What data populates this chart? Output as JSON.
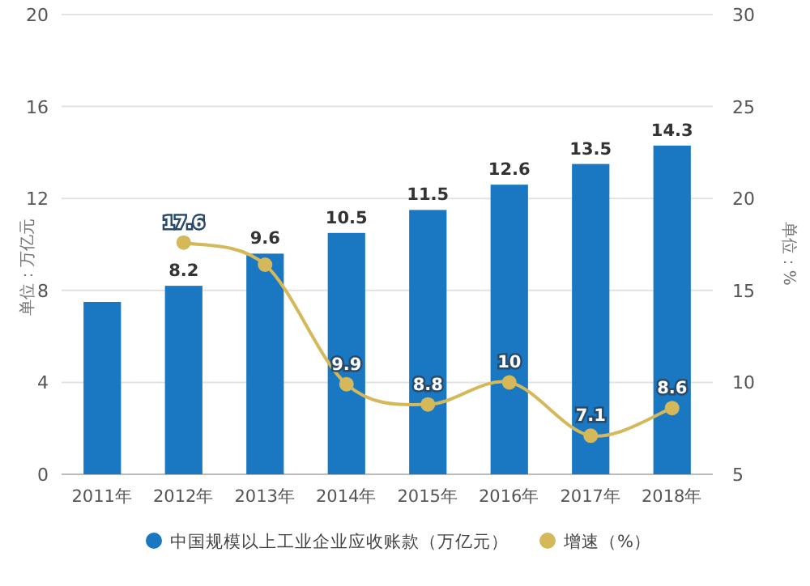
{
  "chart_data": {
    "type": "bar",
    "categories": [
      "2011年",
      "2012年",
      "2013年",
      "2014年",
      "2015年",
      "2016年",
      "2017年",
      "2018年"
    ],
    "series": [
      {
        "name": "中国规模以上工业企业应收账款（万亿元）",
        "color": "#1a78c2",
        "values": [
          7.5,
          8.2,
          9.6,
          10.5,
          11.5,
          12.6,
          13.5,
          14.3
        ],
        "value_labels": [
          null,
          "8.2",
          "9.6",
          "10.5",
          "11.5",
          "12.6",
          "13.5",
          "14.3"
        ]
      },
      {
        "name": "增速（%）",
        "type": "line",
        "axis": "y2",
        "color": "#d4b85a",
        "values": [
          null,
          17.6,
          16.4,
          9.9,
          8.8,
          10,
          7.1,
          8.6
        ],
        "value_labels": [
          null,
          "17.6",
          null,
          "9.9",
          "8.8",
          "10",
          "7.1",
          "8.6"
        ]
      }
    ],
    "ylabel": "单位：万亿元",
    "y2label": "单位：%",
    "ylim": [
      0,
      20
    ],
    "yticks": [
      0,
      4,
      8,
      12,
      16,
      20
    ],
    "y2lim": [
      5,
      30
    ],
    "y2ticks": [
      5,
      10,
      15,
      20,
      25,
      30
    ],
    "grid": "y",
    "legend": "bottom",
    "marker": "circle"
  }
}
